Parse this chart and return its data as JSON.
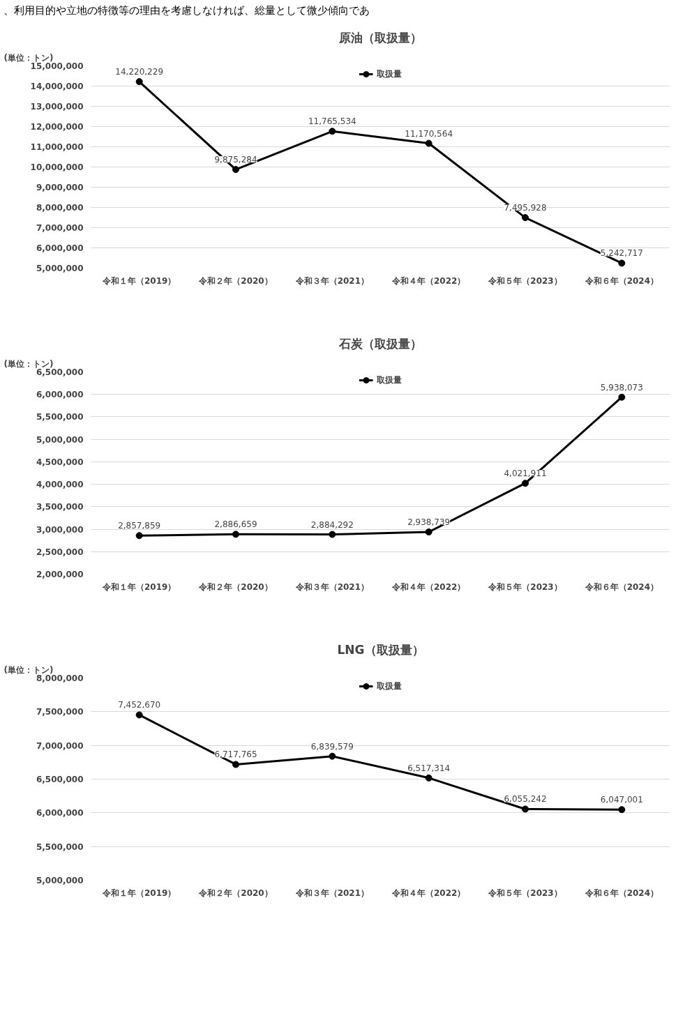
{
  "chart_data": [
    {
      "type": "line",
      "title": "原油（取扱量）",
      "ylabel": "(単位：トン)",
      "annotations": [
        "、利用目的や立地の特徴等の理由を考慮しなければ、総量として微少傾向であ"
      ],
      "categories": [
        "令和１年（2019）",
        "令和２年（2020）",
        "令和３年（2021）",
        "令和４年（2022）",
        "令和５年（2023）",
        "令和６年（2024）"
      ],
      "series": [
        {
          "name": "取扱量",
          "color": "#000000",
          "values": [
            14220229,
            9875284,
            11765534,
            11170564,
            7495928,
            5242717
          ],
          "value_labels": [
            "14,220,229",
            "9,875,284",
            "11,765,534",
            "11,170,564",
            "7,495,928",
            "5,242,717"
          ]
        }
      ],
      "ylim": [
        5000000,
        15000000
      ],
      "yticks": [
        {
          "value": 5000000,
          "label": "5,000,000"
        },
        {
          "value": 6000000,
          "label": "6,000,000"
        },
        {
          "value": 7000000,
          "label": "7,000,000"
        },
        {
          "value": 8000000,
          "label": "8,000,000"
        },
        {
          "value": 9000000,
          "label": "9,000,000"
        },
        {
          "value": 10000000,
          "label": "10,000,000"
        },
        {
          "value": 11000000,
          "label": "11,000,000"
        },
        {
          "value": 12000000,
          "label": "12,000,000"
        },
        {
          "value": 13000000,
          "label": "13,000,000"
        },
        {
          "value": 14000000,
          "label": "14,000,000"
        },
        {
          "value": 15000000,
          "label": "15,000,000"
        }
      ],
      "grid": "y",
      "legend": "top",
      "marker": "circle",
      "line_style": "solid"
    },
    {
      "type": "line",
      "title": "石炭（取扱量）",
      "ylabel": "(単位：トン)",
      "categories": [
        "令和１年（2019）",
        "令和２年（2020）",
        "令和３年（2021）",
        "令和４年（2022）",
        "令和５年（2023）",
        "令和６年（2024）"
      ],
      "series": [
        {
          "name": "取扱量",
          "color": "#000000",
          "values": [
            2857859,
            2886659,
            2884292,
            2938739,
            4021911,
            5938073
          ],
          "value_labels": [
            "2,857,859",
            "2,886,659",
            "2,884,292",
            "2,938,739",
            "4,021,911",
            "5,938,073"
          ]
        }
      ],
      "ylim": [
        2000000,
        6500000
      ],
      "yticks": [
        {
          "value": 2000000,
          "label": "2,000,000"
        },
        {
          "value": 2500000,
          "label": "2,500,000"
        },
        {
          "value": 3000000,
          "label": "3,000,000"
        },
        {
          "value": 3500000,
          "label": "3,500,000"
        },
        {
          "value": 4000000,
          "label": "4,000,000"
        },
        {
          "value": 4500000,
          "label": "4,500,000"
        },
        {
          "value": 5000000,
          "label": "5,000,000"
        },
        {
          "value": 5500000,
          "label": "5,500,000"
        },
        {
          "value": 6000000,
          "label": "6,000,000"
        },
        {
          "value": 6500000,
          "label": "6,500,000"
        }
      ],
      "grid": "y",
      "legend": "top",
      "marker": "circle",
      "line_style": "solid"
    },
    {
      "type": "line",
      "title": "LNG（取扱量）",
      "ylabel": "(単位：トン)",
      "categories": [
        "令和１年（2019）",
        "令和２年（2020）",
        "令和３年（2021）",
        "令和４年（2022）",
        "令和５年（2023）",
        "令和６年（2024）"
      ],
      "series": [
        {
          "name": "取扱量",
          "color": "#000000",
          "values": [
            7452670,
            6717765,
            6839579,
            6517314,
            6055242,
            6047001
          ],
          "value_labels": [
            "7,452,670",
            "6,717,765",
            "6,839,579",
            "6,517,314",
            "6,055,242",
            "6,047,001"
          ]
        }
      ],
      "ylim": [
        5000000,
        8000000
      ],
      "yticks": [
        {
          "value": 5000000,
          "label": "5,000,000"
        },
        {
          "value": 5500000,
          "label": "5,500,000"
        },
        {
          "value": 6000000,
          "label": "6,000,000"
        },
        {
          "value": 6500000,
          "label": "6,500,000"
        },
        {
          "value": 7000000,
          "label": "7,000,000"
        },
        {
          "value": 7500000,
          "label": "7,500,000"
        },
        {
          "value": 8000000,
          "label": "8,000,000"
        }
      ],
      "grid": "y",
      "legend": "top",
      "marker": "circle",
      "line_style": "solid"
    }
  ]
}
